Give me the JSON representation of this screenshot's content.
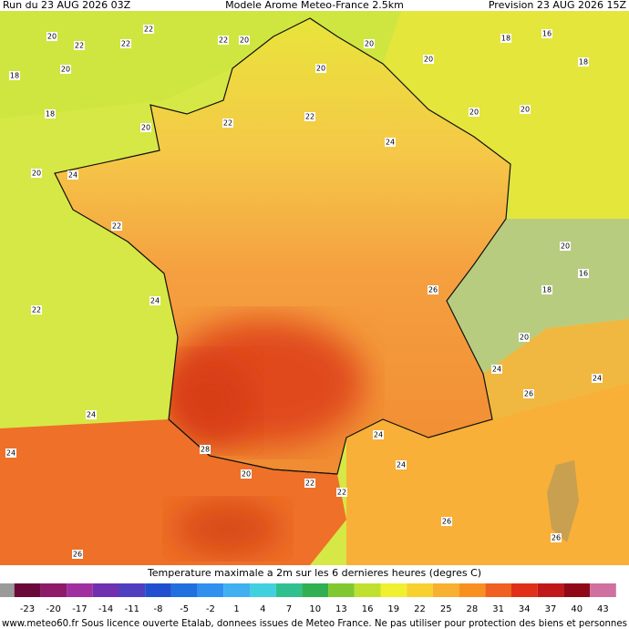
{
  "header": {
    "left": "Run du 23 AUG 2026 03Z",
    "center": "Modele Arome Meteo-France 2.5km",
    "right": "Prevision 23 AUG 2026 15Z"
  },
  "map_labels": [
    "20",
    "22",
    "22",
    "22",
    "22",
    "20",
    "18",
    "20",
    "18",
    "20",
    "20",
    "20",
    "20",
    "18",
    "16",
    "18",
    "20",
    "20",
    "22",
    "22",
    "24",
    "20",
    "24",
    "22",
    "24",
    "22",
    "24",
    "24",
    "28",
    "20",
    "22",
    "22",
    "24",
    "24",
    "26",
    "26",
    "26",
    "20",
    "20",
    "16",
    "24",
    "26",
    "18",
    "24",
    "26"
  ],
  "legend": {
    "title": "Temperature maximale a 2m sur les 6 dernieres heures (degres C)",
    "colors": [
      "#9a9a9a",
      "#6b0a3a",
      "#8e1a6a",
      "#a030a0",
      "#7030b0",
      "#5040c0",
      "#2050d0",
      "#2070e0",
      "#3090f0",
      "#40b0f0",
      "#40d0e0",
      "#30c090",
      "#30b050",
      "#80c830",
      "#c0e030",
      "#f0f030",
      "#f8d030",
      "#f8b030",
      "#f89020",
      "#f06020",
      "#e03018",
      "#c01818",
      "#900818",
      "#d070a0"
    ],
    "labels": [
      "-23",
      "-20",
      "-17",
      "-14",
      "-11",
      "-8",
      "-5",
      "-2",
      "1",
      "4",
      "7",
      "10",
      "13",
      "16",
      "19",
      "22",
      "25",
      "28",
      "31",
      "34",
      "37",
      "40",
      "43"
    ]
  },
  "footer": "www.meteo60.fr Sous licence ouverte Etalab, donnees issues de Meteo France. Ne pas utiliser pour protection des biens et personnes"
}
